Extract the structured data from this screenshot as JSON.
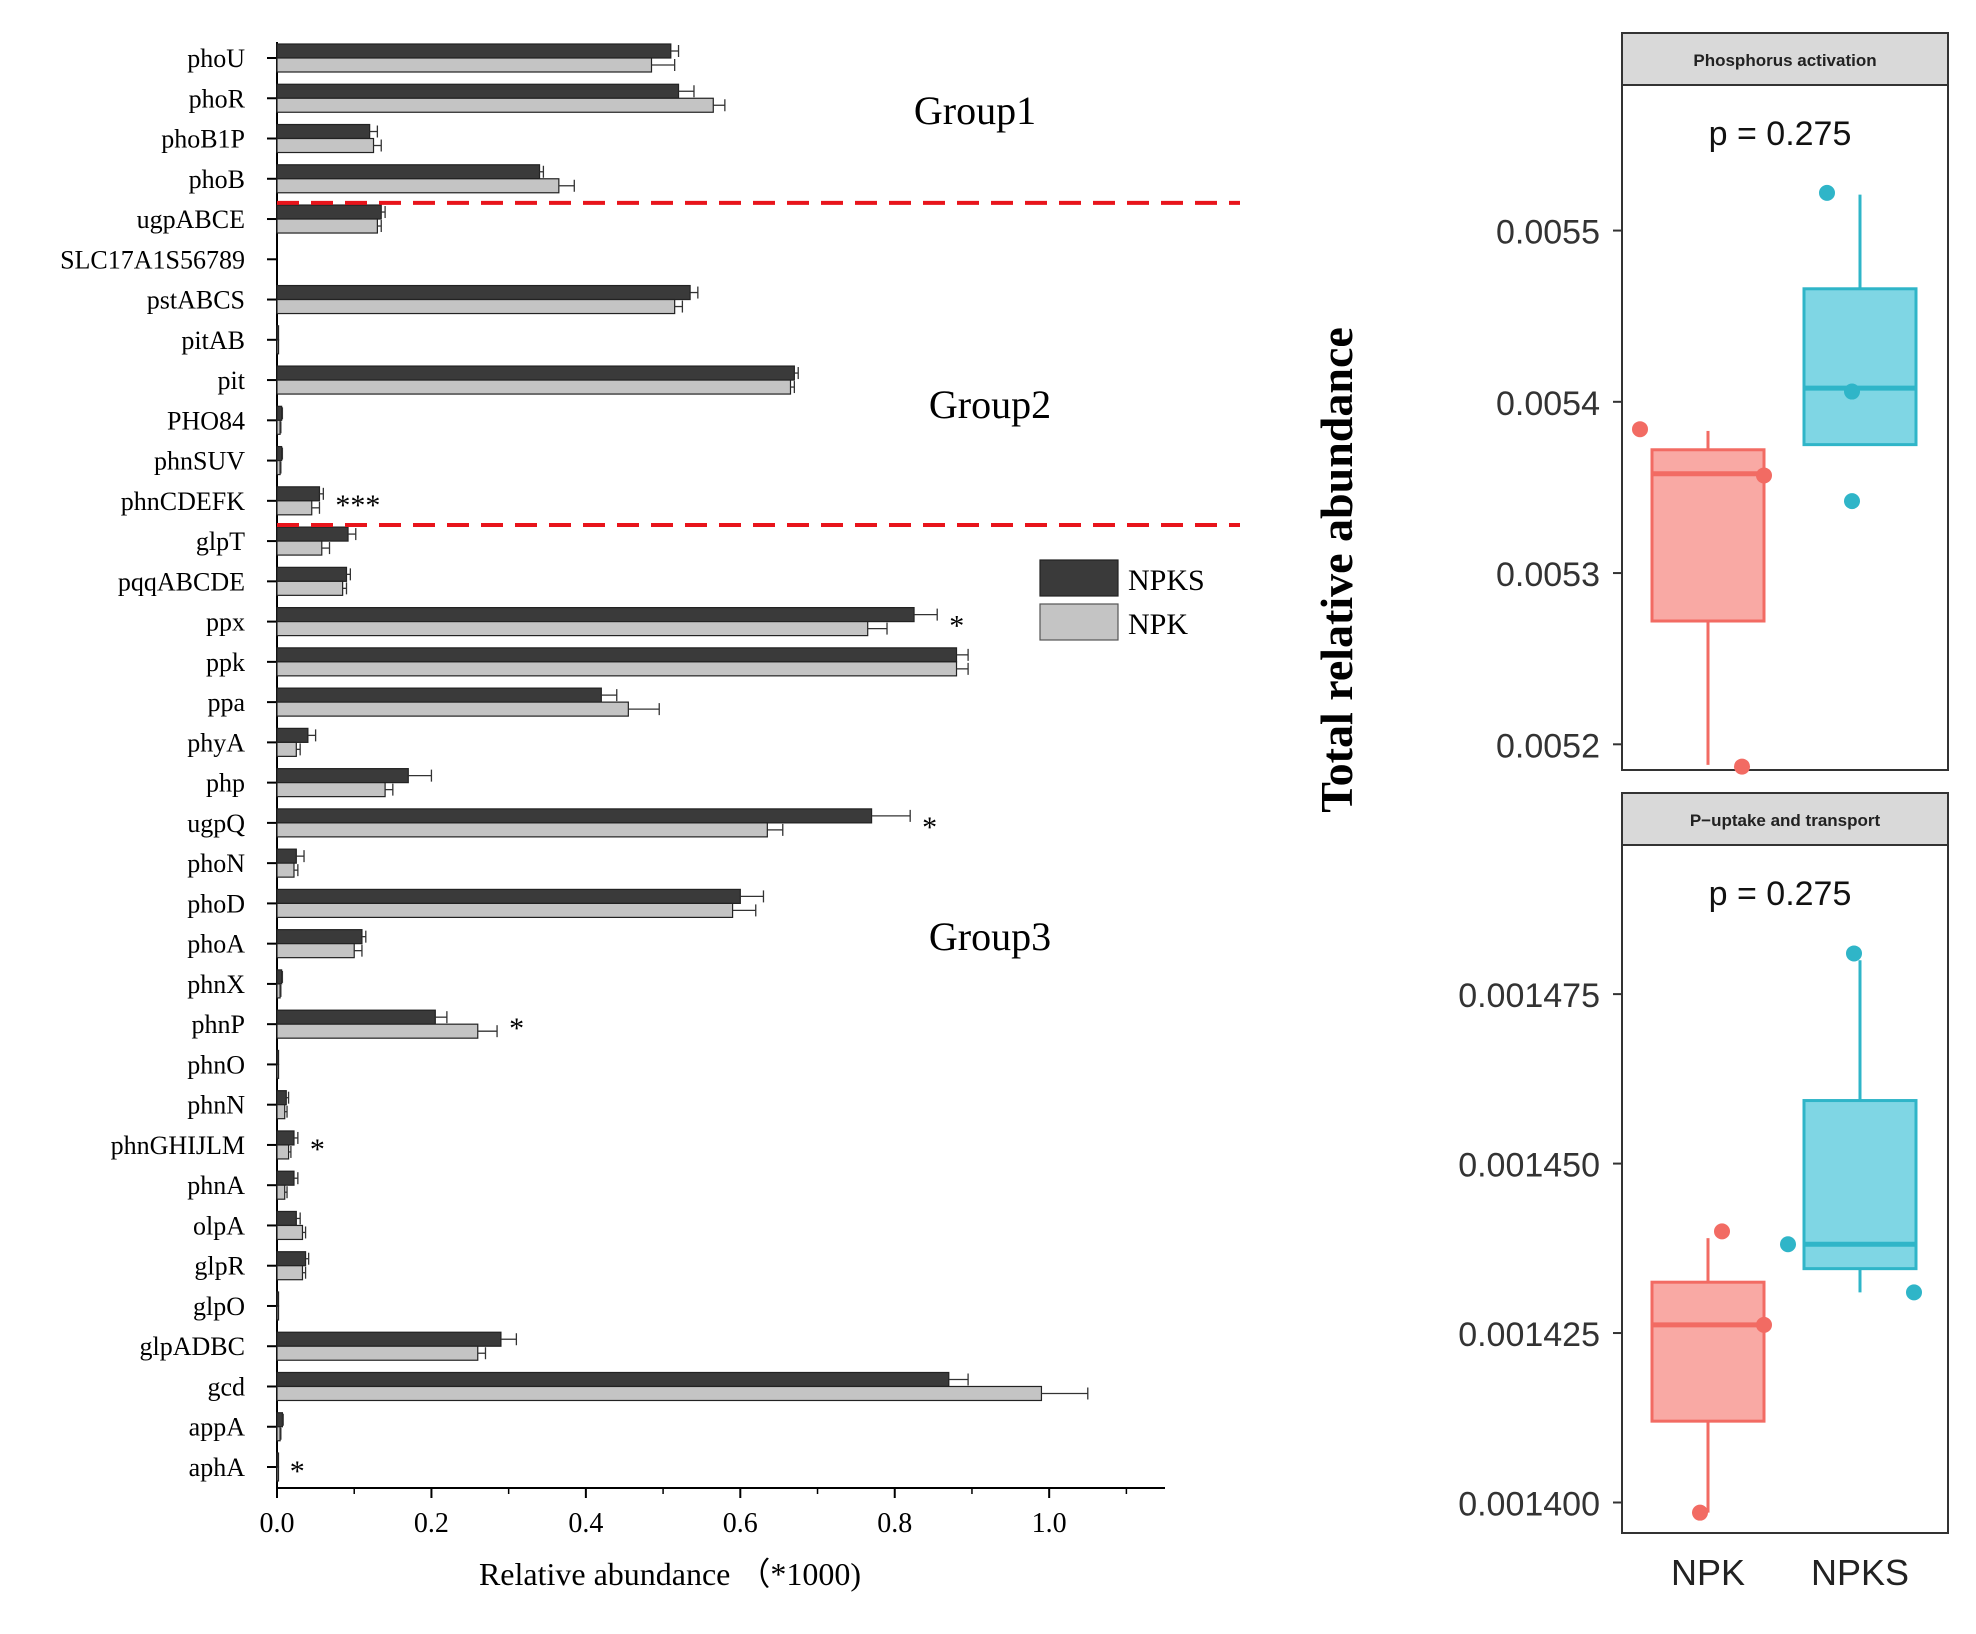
{
  "chart_data": [
    {
      "type": "bar",
      "orientation": "horizontal",
      "xlabel": "Relative abundance （*1000)",
      "xlim": [
        0,
        1.15
      ],
      "xticks": [
        "0.0",
        "0.2",
        "0.4",
        "0.6",
        "0.8",
        "1.0"
      ],
      "legend": [
        "NPKS",
        "NPK"
      ],
      "legend_position": "middle-right",
      "colors": {
        "NPKS": "#3a3a3a",
        "NPK": "#c4c4c4",
        "separator": "#e8141b"
      },
      "groups": [
        {
          "label": "Group1",
          "first": 0,
          "last": 3
        },
        {
          "label": "Group2",
          "first": 4,
          "last": 11
        },
        {
          "label": "Group3",
          "first": 12,
          "last": 35
        }
      ],
      "categories": [
        "phoU",
        "phoR",
        "phoB1P",
        "phoB",
        "ugpABCE",
        "SLC17A1S56789",
        "pstABCS",
        "pitAB",
        "pit",
        "PHO84",
        "phnSUV",
        "phnCDEFK",
        "glpT",
        "pqqABCDE",
        "ppx",
        "ppk",
        "ppa",
        "phyA",
        "php",
        "ugpQ",
        "phoN",
        "phoD",
        "phoA",
        "phnX",
        "phnP",
        "phnO",
        "phnN",
        "phnGHIJLM",
        "phnA",
        "olpA",
        "glpR",
        "glpO",
        "glpADBC",
        "gcd",
        "appA",
        "aphA"
      ],
      "series": [
        {
          "name": "NPKS",
          "values": [
            0.51,
            0.52,
            0.12,
            0.34,
            0.135,
            0.0,
            0.535,
            0.002,
            0.67,
            0.006,
            0.006,
            0.055,
            0.092,
            0.09,
            0.825,
            0.88,
            0.42,
            0.04,
            0.17,
            0.77,
            0.025,
            0.6,
            0.11,
            0.006,
            0.205,
            0.002,
            0.012,
            0.022,
            0.022,
            0.025,
            0.037,
            0.002,
            0.29,
            0.87,
            0.007,
            0.001
          ],
          "errors": [
            0.01,
            0.02,
            0.01,
            0.005,
            0.005,
            0.0,
            0.01,
            0.0,
            0.005,
            0.001,
            0.001,
            0.005,
            0.01,
            0.005,
            0.03,
            0.015,
            0.02,
            0.01,
            0.03,
            0.05,
            0.01,
            0.03,
            0.005,
            0.001,
            0.015,
            0.0,
            0.003,
            0.005,
            0.005,
            0.005,
            0.004,
            0.0,
            0.02,
            0.025,
            0.001,
            0.0
          ]
        },
        {
          "name": "NPK",
          "values": [
            0.485,
            0.565,
            0.125,
            0.365,
            0.13,
            0.0,
            0.515,
            0.002,
            0.665,
            0.004,
            0.004,
            0.045,
            0.058,
            0.085,
            0.765,
            0.88,
            0.455,
            0.025,
            0.14,
            0.635,
            0.022,
            0.59,
            0.1,
            0.004,
            0.26,
            0.002,
            0.01,
            0.015,
            0.01,
            0.033,
            0.033,
            0.002,
            0.26,
            0.99,
            0.004,
            0.001
          ],
          "errors": [
            0.03,
            0.015,
            0.01,
            0.02,
            0.005,
            0.0,
            0.01,
            0.0,
            0.005,
            0.001,
            0.001,
            0.01,
            0.01,
            0.005,
            0.025,
            0.015,
            0.04,
            0.005,
            0.01,
            0.02,
            0.005,
            0.03,
            0.01,
            0.001,
            0.025,
            0.0,
            0.003,
            0.003,
            0.003,
            0.004,
            0.004,
            0.0,
            0.01,
            0.06,
            0.001,
            0.0
          ]
        }
      ],
      "significance": [
        {
          "gene": "phnCDEFK",
          "label": "***"
        },
        {
          "gene": "ppx",
          "label": "*"
        },
        {
          "gene": "ugpQ",
          "label": "*"
        },
        {
          "gene": "phnP",
          "label": "*"
        },
        {
          "gene": "phnGHIJLM",
          "label": "*"
        },
        {
          "gene": "aphA",
          "label": "*"
        }
      ]
    },
    {
      "type": "box",
      "title": "Phosphorus activation",
      "p_value": "p = 0.275",
      "ylabel": "Total relative abundance",
      "ylim": [
        0.005185,
        0.005585
      ],
      "yticks": [
        0.0052,
        0.0053,
        0.0054,
        0.0055
      ],
      "ytick_labels": [
        "0.0052",
        "0.0053",
        "0.0054",
        "0.0055"
      ],
      "categories": [
        "NPK",
        "NPKS"
      ],
      "boxes": [
        {
          "name": "NPK",
          "color": "#f26b63",
          "fill": "#f9a9a4",
          "whisker_low": 0.005188,
          "q1": 0.005272,
          "median": 0.005358,
          "q3": 0.005372,
          "whisker_high": 0.005383,
          "points": [
            0.005384,
            0.005357,
            0.005187
          ]
        },
        {
          "name": "NPKS",
          "color": "#2fb5c8",
          "fill": "#7fd6e4",
          "whisker_low": 0.005375,
          "q1": 0.005375,
          "median": 0.005408,
          "q3": 0.005466,
          "whisker_high": 0.005521,
          "points": [
            0.005522,
            0.005406,
            0.005342
          ]
        }
      ]
    },
    {
      "type": "box",
      "title": "P−uptake and transport",
      "p_value": "p = 0.275",
      "ylim": [
        0.0013955,
        0.001497
      ],
      "yticks": [
        0.0014,
        0.001425,
        0.00145,
        0.001475
      ],
      "ytick_labels": [
        "0.001400",
        "0.001425",
        "0.001450",
        "0.001475"
      ],
      "categories": [
        "NPK",
        "NPKS"
      ],
      "boxes": [
        {
          "name": "NPK",
          "color": "#f26b63",
          "fill": "#f9a9a4",
          "whisker_low": 0.0013985,
          "q1": 0.001412,
          "median": 0.0014262,
          "q3": 0.0014325,
          "whisker_high": 0.001439,
          "points": [
            0.00144,
            0.0014262,
            0.0013985
          ]
        },
        {
          "name": "NPKS",
          "color": "#2fb5c8",
          "fill": "#7fd6e4",
          "whisker_low": 0.001431,
          "q1": 0.0014345,
          "median": 0.0014381,
          "q3": 0.0014593,
          "whisker_high": 0.00148,
          "points": [
            0.001481,
            0.0014381,
            0.001431
          ]
        }
      ]
    }
  ]
}
